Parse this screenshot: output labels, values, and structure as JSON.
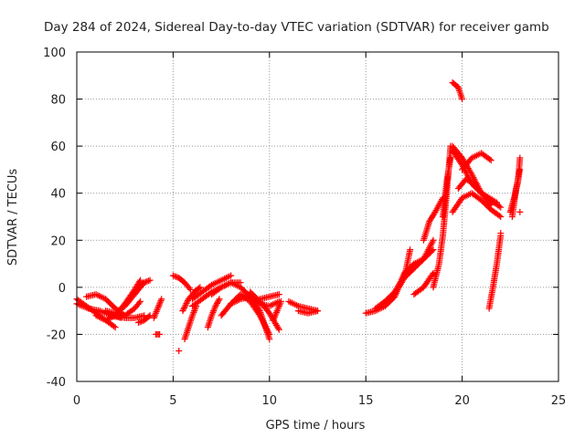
{
  "chart_data": {
    "type": "scatter",
    "title": "Day 284 of 2024, Sidereal Day-to-day VTEC variation (SDTVAR) for receiver gamb",
    "xlabel": "GPS time / hours",
    "ylabel": "SDTVAR / TECUs",
    "xlim": [
      0,
      25
    ],
    "ylim": [
      -40,
      100
    ],
    "x_ticks": [
      0,
      5,
      10,
      15,
      20,
      25
    ],
    "y_ticks": [
      -40,
      -20,
      0,
      20,
      40,
      60,
      80,
      100
    ],
    "grid": true,
    "marker": "+",
    "series_color": "#ff0000",
    "segments": [
      {
        "x": [
          0.0,
          0.5,
          1.0,
          1.5,
          2.0
        ],
        "y": [
          -5,
          -8,
          -11,
          -14,
          -17
        ]
      },
      {
        "x": [
          0.0,
          0.6,
          1.2,
          1.8,
          2.3
        ],
        "y": [
          -7,
          -9,
          -10,
          -12,
          -13
        ]
      },
      {
        "x": [
          0.5,
          1.0,
          1.5,
          2.0,
          2.5,
          3.0,
          3.3
        ],
        "y": [
          -4,
          -3,
          -5,
          -9,
          -12,
          -9,
          -6
        ]
      },
      {
        "x": [
          1.0,
          1.5,
          2.0,
          2.5,
          3.0,
          3.3
        ],
        "y": [
          -12,
          -14,
          -12,
          -7,
          -1,
          3
        ]
      },
      {
        "x": [
          1.5,
          2.0,
          2.5,
          3.0,
          3.5,
          3.8
        ],
        "y": [
          -10,
          -11,
          -8,
          -3,
          2,
          3
        ]
      },
      {
        "x": [
          2.0,
          2.5,
          3.0,
          3.5
        ],
        "y": [
          -12,
          -13,
          -13,
          -12
        ]
      },
      {
        "x": [
          3.2,
          3.5,
          3.8
        ],
        "y": [
          -15,
          -14,
          -12
        ]
      },
      {
        "x": [
          4.0,
          4.2,
          4.4
        ],
        "y": [
          -13,
          -9,
          -5
        ]
      },
      {
        "x": [
          4.1,
          4.3
        ],
        "y": [
          -20,
          -20
        ]
      },
      {
        "x": [
          5.0,
          5.3,
          5.6,
          5.9
        ],
        "y": [
          5,
          4,
          2,
          -1
        ]
      },
      {
        "x": [
          5.5,
          5.8,
          6.1,
          6.4
        ],
        "y": [
          -10,
          -5,
          -2,
          0
        ]
      },
      {
        "x": [
          6.0,
          6.5,
          7.0,
          7.5,
          8.0
        ],
        "y": [
          -5,
          -2,
          1,
          3,
          5
        ]
      },
      {
        "x": [
          6.0,
          6.5,
          7.0,
          7.5,
          8.0,
          8.5
        ],
        "y": [
          -8,
          -5,
          -2,
          0,
          2,
          2
        ]
      },
      {
        "x": [
          5.6,
          5.8,
          6.0,
          6.2
        ],
        "y": [
          -22,
          -17,
          -12,
          -8
        ]
      },
      {
        "x": [
          6.8,
          7.0,
          7.2,
          7.4
        ],
        "y": [
          -17,
          -12,
          -8,
          -5
        ]
      },
      {
        "x": [
          7.0,
          7.5,
          8.0,
          8.5,
          9.0,
          9.5,
          10.0,
          10.5
        ],
        "y": [
          -3,
          0,
          2,
          0,
          -4,
          -7,
          -8,
          -6
        ]
      },
      {
        "x": [
          7.5,
          8.0,
          8.5,
          9.0,
          9.5,
          10.0
        ],
        "y": [
          -12,
          -7,
          -3,
          -6,
          -12,
          -20
        ]
      },
      {
        "x": [
          8.0,
          8.5,
          9.0,
          9.5,
          10.0
        ],
        "y": [
          -7,
          -5,
          -4,
          -10,
          -22
        ]
      },
      {
        "x": [
          9.0,
          9.5,
          10.0,
          10.5
        ],
        "y": [
          -2,
          -6,
          -11,
          -18
        ]
      },
      {
        "x": [
          9.5,
          10.0,
          10.5
        ],
        "y": [
          -5,
          -4,
          -3
        ]
      },
      {
        "x": [
          10.2,
          10.4,
          10.6
        ],
        "y": [
          -14,
          -10,
          -6
        ]
      },
      {
        "x": [
          11.0,
          11.5,
          12.0,
          12.5
        ],
        "y": [
          -6,
          -8,
          -9,
          -10
        ]
      },
      {
        "x": [
          11.5,
          12.0,
          12.5
        ],
        "y": [
          -10,
          -11,
          -10
        ]
      },
      {
        "x": [
          15.0,
          15.5,
          16.0,
          16.5
        ],
        "y": [
          -11,
          -10,
          -8,
          -4
        ]
      },
      {
        "x": [
          15.5,
          16.0,
          16.5,
          17.0
        ],
        "y": [
          -9,
          -6,
          -2,
          5
        ]
      },
      {
        "x": [
          16.0,
          16.5,
          17.0,
          17.3
        ],
        "y": [
          -6,
          -3,
          4,
          16
        ]
      },
      {
        "x": [
          16.5,
          17.0,
          17.5
        ],
        "y": [
          -4,
          6,
          10
        ]
      },
      {
        "x": [
          17.0,
          17.5,
          18.0,
          18.5
        ],
        "y": [
          4,
          8,
          12,
          20
        ]
      },
      {
        "x": [
          17.5,
          18.0,
          18.5
        ],
        "y": [
          10,
          12,
          16
        ]
      },
      {
        "x": [
          17.5,
          18.0,
          18.5
        ],
        "y": [
          -3,
          0,
          6
        ]
      },
      {
        "x": [
          18.0,
          18.3,
          18.6,
          19.0
        ],
        "y": [
          20,
          28,
          32,
          38
        ]
      },
      {
        "x": [
          18.5,
          18.8,
          19.0,
          19.2,
          19.4
        ],
        "y": [
          0,
          10,
          22,
          40,
          60
        ]
      },
      {
        "x": [
          19.0,
          19.2,
          19.4
        ],
        "y": [
          30,
          45,
          55
        ]
      },
      {
        "x": [
          19.5,
          19.8,
          20.0
        ],
        "y": [
          87,
          85,
          80
        ]
      },
      {
        "x": [
          19.5,
          20.0,
          20.5,
          21.0,
          21.5
        ],
        "y": [
          60,
          55,
          48,
          40,
          35
        ]
      },
      {
        "x": [
          19.5,
          20.0,
          20.5,
          21.0,
          21.5,
          22.0
        ],
        "y": [
          58,
          52,
          44,
          40,
          37,
          34
        ]
      },
      {
        "x": [
          20.0,
          20.5,
          21.0,
          21.5
        ],
        "y": [
          50,
          55,
          57,
          54
        ]
      },
      {
        "x": [
          19.5,
          20.0,
          20.5,
          21.0,
          21.5,
          22.0
        ],
        "y": [
          32,
          38,
          40,
          37,
          33,
          30
        ]
      },
      {
        "x": [
          19.8,
          20.2,
          20.6,
          21.0,
          21.4,
          21.8
        ],
        "y": [
          42,
          46,
          44,
          40,
          38,
          36
        ]
      },
      {
        "x": [
          21.4,
          21.6,
          21.8,
          22.0
        ],
        "y": [
          -9,
          0,
          10,
          22
        ]
      },
      {
        "x": [
          22.5,
          22.7,
          22.9,
          23.0
        ],
        "y": [
          32,
          38,
          45,
          55
        ]
      },
      {
        "x": [
          22.6,
          22.8,
          23.0
        ],
        "y": [
          30,
          42,
          50
        ]
      }
    ],
    "isolated_points": [
      {
        "x": 5.3,
        "y": -27
      },
      {
        "x": 22.0,
        "y": 23
      },
      {
        "x": 23.0,
        "y": 32
      }
    ]
  }
}
